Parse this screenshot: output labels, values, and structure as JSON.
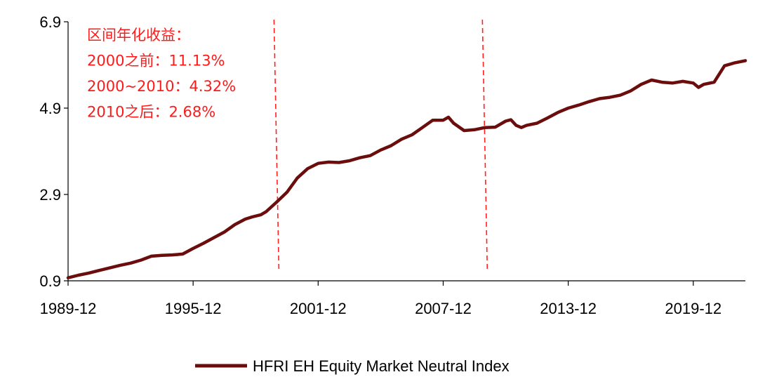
{
  "chart_data": {
    "type": "line",
    "title": "",
    "xlabel": "",
    "ylabel": "",
    "ylim": [
      0.9,
      6.9
    ],
    "xlim": [
      "1989-12",
      "2022-06"
    ],
    "y_ticks": [
      "0.9",
      "2.9",
      "4.9",
      "6.9"
    ],
    "x_ticks": [
      {
        "date": "1989-12",
        "label": "1989-12"
      },
      {
        "date": "1995-12",
        "label": "1995-12"
      },
      {
        "date": "2001-12",
        "label": "2001-12"
      },
      {
        "date": "2007-12",
        "label": "2007-12"
      },
      {
        "date": "2013-12",
        "label": "2013-12"
      },
      {
        "date": "2019-12",
        "label": "2019-12"
      }
    ],
    "grid": false,
    "legend_position": "bottom-center",
    "vertical_markers": [
      {
        "date": "2000-01",
        "style": "dashed",
        "color": "#ff2020"
      },
      {
        "date": "2010-01",
        "style": "dashed",
        "color": "#ff2020"
      }
    ],
    "annotations": [
      "区间年化收益：",
      "2000之前：11.13%",
      "2000~2010：4.32%",
      "2010之后：2.68%"
    ],
    "series": [
      {
        "name": "HFRI EH Equity Market Neutral Index",
        "color": "#6b0d0d",
        "points": [
          [
            "1989-12",
            0.97
          ],
          [
            "1990-06",
            1.03
          ],
          [
            "1990-12",
            1.08
          ],
          [
            "1991-06",
            1.14
          ],
          [
            "1991-12",
            1.2
          ],
          [
            "1992-06",
            1.26
          ],
          [
            "1992-12",
            1.31
          ],
          [
            "1993-06",
            1.38
          ],
          [
            "1993-12",
            1.47
          ],
          [
            "1994-06",
            1.49
          ],
          [
            "1994-12",
            1.5
          ],
          [
            "1995-06",
            1.52
          ],
          [
            "1995-12",
            1.65
          ],
          [
            "1996-06",
            1.77
          ],
          [
            "1996-12",
            1.9
          ],
          [
            "1997-06",
            2.03
          ],
          [
            "1997-12",
            2.2
          ],
          [
            "1998-06",
            2.33
          ],
          [
            "1998-10",
            2.38
          ],
          [
            "1999-03",
            2.43
          ],
          [
            "1999-06",
            2.5
          ],
          [
            "1999-12",
            2.72
          ],
          [
            "2000-06",
            2.95
          ],
          [
            "2000-12",
            3.28
          ],
          [
            "2001-06",
            3.5
          ],
          [
            "2001-12",
            3.62
          ],
          [
            "2002-06",
            3.65
          ],
          [
            "2002-12",
            3.64
          ],
          [
            "2003-06",
            3.68
          ],
          [
            "2003-12",
            3.75
          ],
          [
            "2004-06",
            3.8
          ],
          [
            "2004-12",
            3.93
          ],
          [
            "2005-06",
            4.03
          ],
          [
            "2005-12",
            4.18
          ],
          [
            "2006-06",
            4.28
          ],
          [
            "2006-12",
            4.45
          ],
          [
            "2007-06",
            4.62
          ],
          [
            "2007-12",
            4.62
          ],
          [
            "2008-03",
            4.69
          ],
          [
            "2008-06",
            4.55
          ],
          [
            "2008-12",
            4.38
          ],
          [
            "2009-06",
            4.4
          ],
          [
            "2009-12",
            4.45
          ],
          [
            "2010-06",
            4.46
          ],
          [
            "2010-12",
            4.6
          ],
          [
            "2011-03",
            4.63
          ],
          [
            "2011-06",
            4.5
          ],
          [
            "2011-09",
            4.45
          ],
          [
            "2011-12",
            4.5
          ],
          [
            "2012-06",
            4.55
          ],
          [
            "2012-12",
            4.67
          ],
          [
            "2013-06",
            4.8
          ],
          [
            "2013-12",
            4.9
          ],
          [
            "2014-06",
            4.97
          ],
          [
            "2014-12",
            5.05
          ],
          [
            "2015-06",
            5.12
          ],
          [
            "2015-12",
            5.15
          ],
          [
            "2016-06",
            5.2
          ],
          [
            "2016-12",
            5.3
          ],
          [
            "2017-06",
            5.45
          ],
          [
            "2017-12",
            5.55
          ],
          [
            "2018-06",
            5.5
          ],
          [
            "2018-12",
            5.48
          ],
          [
            "2019-06",
            5.52
          ],
          [
            "2019-12",
            5.48
          ],
          [
            "2020-03",
            5.38
          ],
          [
            "2020-06",
            5.45
          ],
          [
            "2020-12",
            5.5
          ],
          [
            "2021-06",
            5.88
          ],
          [
            "2021-12",
            5.95
          ],
          [
            "2022-06",
            6.0
          ]
        ]
      }
    ]
  }
}
